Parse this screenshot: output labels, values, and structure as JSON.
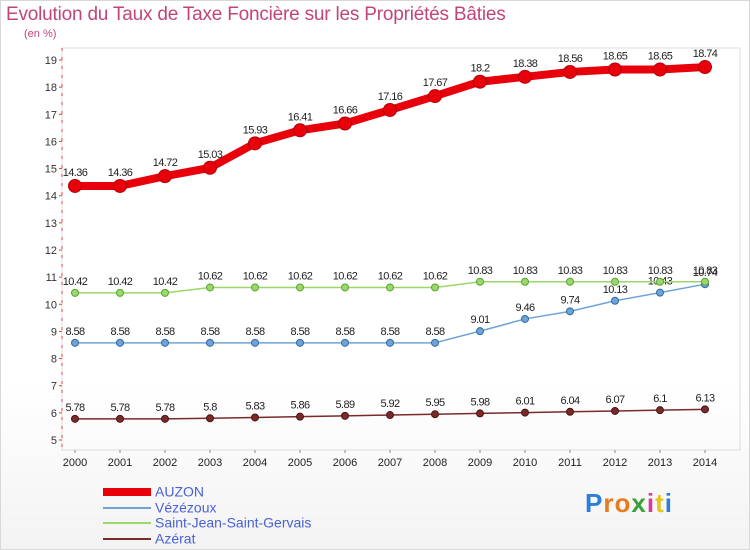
{
  "title": "Evolution du Taux de Taxe Foncière sur les Propriétés Bâties",
  "subtitle": "(en %)",
  "logo": "Proxiti",
  "chart_data": {
    "type": "line",
    "title": "Evolution du Taux de Taxe Foncière sur les Propriétés Bâties",
    "ylabel": "(en %)",
    "xlabel": "",
    "ylim": [
      5,
      19
    ],
    "yticks": [
      5,
      6,
      7,
      8,
      9,
      10,
      11,
      12,
      13,
      14,
      15,
      16,
      17,
      18,
      19
    ],
    "grid": false,
    "legend_position": "bottom-left",
    "x": [
      "2000",
      "2001",
      "2002",
      "2003",
      "2004",
      "2005",
      "2006",
      "2007",
      "2008",
      "2009",
      "2010",
      "2011",
      "2012",
      "2013",
      "2014"
    ],
    "series": [
      {
        "name": "AUZON",
        "color": "#e8000b",
        "values": [
          14.36,
          14.36,
          14.72,
          15.03,
          15.93,
          16.41,
          16.66,
          17.16,
          17.67,
          18.2,
          18.38,
          18.56,
          18.65,
          18.65,
          18.74
        ]
      },
      {
        "name": "Vézézoux",
        "color": "#6fa3d6",
        "values": [
          8.58,
          8.58,
          8.58,
          8.58,
          8.58,
          8.58,
          8.58,
          8.58,
          8.58,
          9.01,
          9.46,
          9.74,
          10.13,
          10.43,
          10.74
        ]
      },
      {
        "name": "Saint-Jean-Saint-Gervais",
        "color": "#9ad86a",
        "values": [
          10.42,
          10.42,
          10.42,
          10.62,
          10.62,
          10.62,
          10.62,
          10.62,
          10.62,
          10.83,
          10.83,
          10.83,
          10.83,
          10.83,
          10.83
        ]
      },
      {
        "name": "Azérat",
        "color": "#7b2a2a",
        "values": [
          5.78,
          5.78,
          5.78,
          5.8,
          5.83,
          5.86,
          5.89,
          5.92,
          5.95,
          5.98,
          6.01,
          6.04,
          6.07,
          6.1,
          6.13
        ]
      }
    ]
  }
}
